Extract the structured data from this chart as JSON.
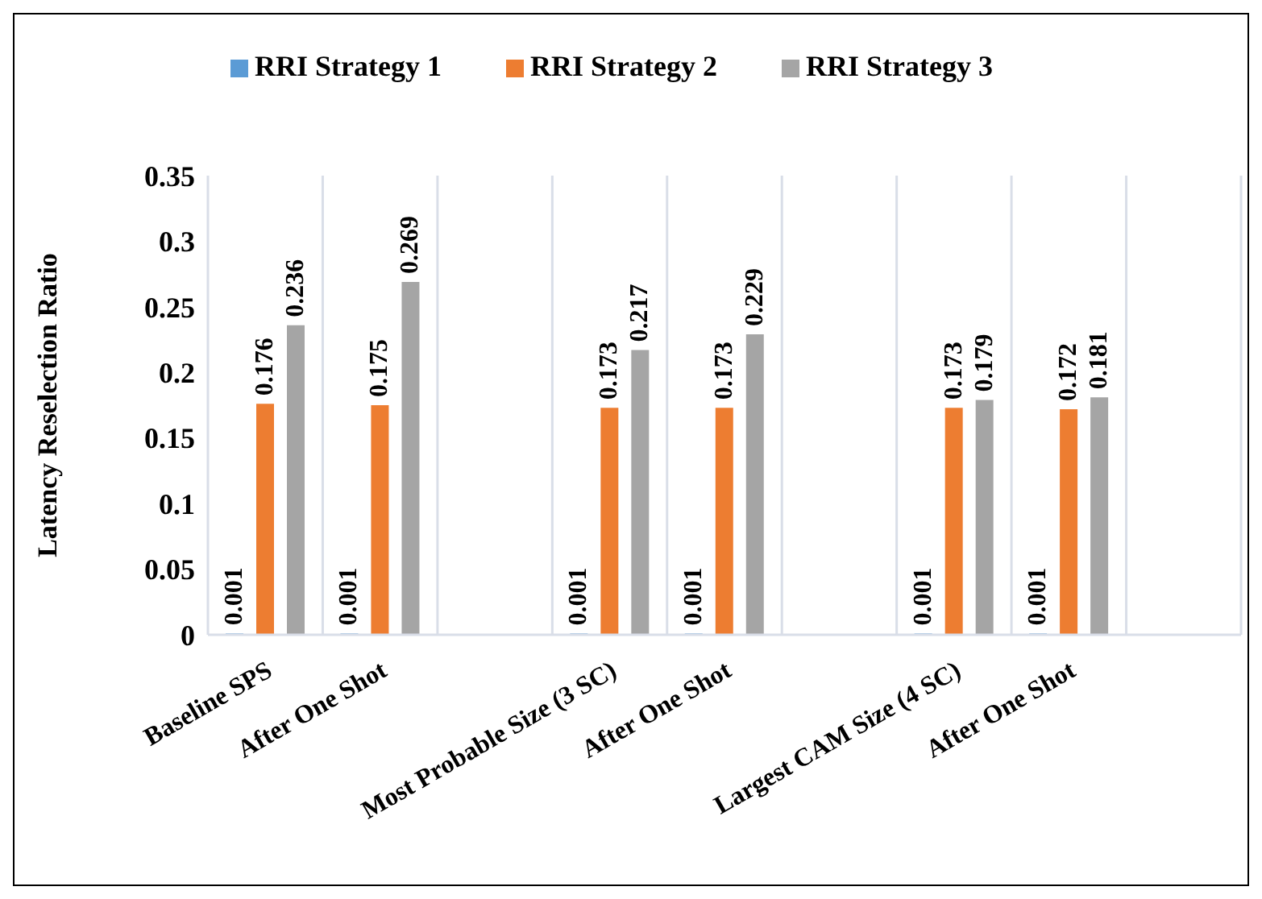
{
  "chart_data": {
    "type": "bar",
    "ylabel": "Latency Reselection Ratio",
    "categories": [
      "Baseline SPS",
      "After One Shot",
      null,
      "Most Probable Size (3 SC)",
      "After One Shot",
      null,
      "Largest CAM Size (4 SC)",
      "After One Shot",
      null
    ],
    "series": [
      {
        "name": "RRI Strategy 1",
        "color": "#5b9bd5",
        "values": [
          0.001,
          0.001,
          null,
          0.001,
          0.001,
          null,
          0.001,
          0.001,
          null
        ]
      },
      {
        "name": "RRI Strategy 2",
        "color": "#ed7d31",
        "values": [
          0.176,
          0.175,
          null,
          0.173,
          0.173,
          null,
          0.173,
          0.172,
          null
        ]
      },
      {
        "name": "RRI Strategy 3",
        "color": "#a5a5a5",
        "values": [
          0.236,
          0.269,
          null,
          0.217,
          0.229,
          null,
          0.179,
          0.181,
          null
        ]
      }
    ],
    "ylim": [
      0,
      0.35
    ],
    "yticks": [
      0,
      0.05,
      0.1,
      0.15,
      0.2,
      0.25,
      0.3,
      0.35
    ],
    "grid": "x",
    "legend": "top",
    "data_labels": true
  }
}
